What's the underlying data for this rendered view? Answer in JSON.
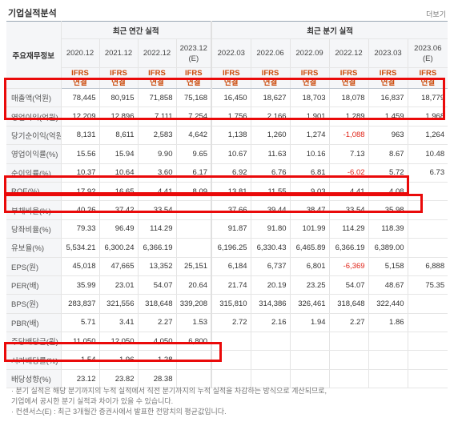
{
  "header": {
    "title": "기업실적분석",
    "more_label": "더보기"
  },
  "table": {
    "corner_label": "주요재무정보",
    "groups": {
      "annual": "최근 연간 실적",
      "quarterly": "최근 분기 실적"
    },
    "annual_periods": [
      {
        "period": "2020.12",
        "est": "",
        "std": "IFRS",
        "scope": "연결"
      },
      {
        "period": "2021.12",
        "est": "",
        "std": "IFRS",
        "scope": "연결"
      },
      {
        "period": "2022.12",
        "est": "",
        "std": "IFRS",
        "scope": "연결"
      },
      {
        "period": "2023.12",
        "est": "(E)",
        "std": "IFRS",
        "scope": "연결"
      }
    ],
    "quarter_periods": [
      {
        "period": "2022.03",
        "est": "",
        "std": "IFRS",
        "scope": "연결"
      },
      {
        "period": "2022.06",
        "est": "",
        "std": "IFRS",
        "scope": "연결"
      },
      {
        "period": "2022.09",
        "est": "",
        "std": "IFRS",
        "scope": "연결"
      },
      {
        "period": "2022.12",
        "est": "",
        "std": "IFRS",
        "scope": "연결"
      },
      {
        "period": "2023.03",
        "est": "",
        "std": "IFRS",
        "scope": "연결"
      },
      {
        "period": "2023.06",
        "est": "(E)",
        "std": "IFRS",
        "scope": "연결"
      }
    ],
    "rows": [
      {
        "label": "매출액(억원)",
        "values": [
          "78,445",
          "80,915",
          "71,858",
          "75,168",
          "16,450",
          "18,627",
          "18,703",
          "18,078",
          "16,837",
          "18,779"
        ],
        "negative": []
      },
      {
        "label": "영업이익(억원)",
        "values": [
          "12,209",
          "12,896",
          "7,111",
          "7,254",
          "1,756",
          "2,166",
          "1,901",
          "1,289",
          "1,459",
          "1,968"
        ],
        "negative": []
      },
      {
        "label": "당기순이익(억원)",
        "values": [
          "8,131",
          "8,611",
          "2,583",
          "4,642",
          "1,138",
          "1,260",
          "1,274",
          "-1,088",
          "963",
          "1,264"
        ],
        "negative": [
          7
        ]
      },
      {
        "label": "영업이익률(%)",
        "values": [
          "15.56",
          "15.94",
          "9.90",
          "9.65",
          "10.67",
          "11.63",
          "10.16",
          "7.13",
          "8.67",
          "10.48"
        ],
        "negative": []
      },
      {
        "label": "순이익률(%)",
        "values": [
          "10.37",
          "10.64",
          "3.60",
          "6.17",
          "6.92",
          "6.76",
          "6.81",
          "-6.02",
          "5.72",
          "6.73"
        ],
        "negative": [
          7
        ]
      },
      {
        "label": "ROE(%)",
        "values": [
          "17.92",
          "16.65",
          "4.41",
          "8.09",
          "13.81",
          "11.55",
          "9.03",
          "4.41",
          "4.08",
          ""
        ],
        "negative": []
      },
      {
        "label": "부채비율(%)",
        "values": [
          "40.26",
          "37.42",
          "33.54",
          "",
          "37.66",
          "39.44",
          "38.47",
          "33.54",
          "35.98",
          ""
        ],
        "negative": []
      },
      {
        "label": "당좌비율(%)",
        "values": [
          "79.33",
          "96.49",
          "114.29",
          "",
          "91.87",
          "91.80",
          "101.99",
          "114.29",
          "118.39",
          ""
        ],
        "negative": []
      },
      {
        "label": "유보율(%)",
        "values": [
          "5,534.21",
          "6,300.24",
          "6,366.19",
          "",
          "6,196.25",
          "6,330.43",
          "6,465.89",
          "6,366.19",
          "6,389.00",
          ""
        ],
        "negative": []
      },
      {
        "label": "EPS(원)",
        "values": [
          "45,018",
          "47,665",
          "13,352",
          "25,151",
          "6,184",
          "6,737",
          "6,801",
          "-6,369",
          "5,158",
          "6,888"
        ],
        "negative": [
          7
        ]
      },
      {
        "label": "PER(배)",
        "values": [
          "35.99",
          "23.01",
          "54.07",
          "20.64",
          "21.74",
          "20.19",
          "23.25",
          "54.07",
          "48.67",
          "75.35"
        ],
        "negative": []
      },
      {
        "label": "BPS(원)",
        "values": [
          "283,837",
          "321,556",
          "318,648",
          "339,208",
          "315,810",
          "314,386",
          "326,461",
          "318,648",
          "322,440",
          ""
        ],
        "negative": []
      },
      {
        "label": "PBR(배)",
        "values": [
          "5.71",
          "3.41",
          "2.27",
          "1.53",
          "2.72",
          "2.16",
          "1.94",
          "2.27",
          "1.86",
          ""
        ],
        "negative": []
      },
      {
        "label": "주당배당금(원)",
        "values": [
          "11,050",
          "12,050",
          "4,050",
          "6,800",
          "",
          "",
          "",
          "",
          "",
          ""
        ],
        "negative": []
      },
      {
        "label": "시가배당률(%)",
        "values": [
          "1.54",
          "1.96",
          "1.28",
          "",
          "",
          "",
          "",
          "",
          "",
          ""
        ],
        "negative": []
      },
      {
        "label": "배당성향(%)",
        "values": [
          "23.12",
          "23.82",
          "28.38",
          "",
          "",
          "",
          "",
          "",
          "",
          ""
        ],
        "negative": []
      }
    ]
  },
  "notes": [
    "· 분기 실적은 해당 분기까지의 누적 실적에서 직전 분기까지의 누적 실적을 차감하는 방식으로 계산되므로,",
    "  기업에서 공시한 분기 실적과 차이가 있을 수 있습니다.",
    "· 컨센서스(E) : 최근 3개월간 증권사에서 발표한 전망치의 평균값입니다."
  ],
  "colors": {
    "highlight": "#ea0a0a",
    "negative": "#e0261a",
    "ifrs": "#cc4b0c",
    "header_bg": "#f5f6f8"
  }
}
